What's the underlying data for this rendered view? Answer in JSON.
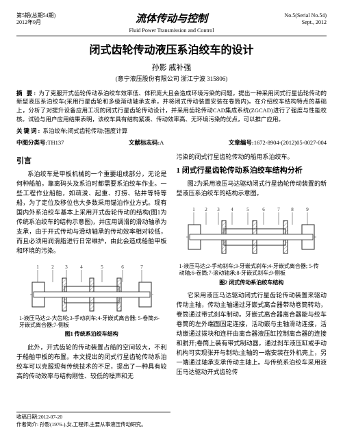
{
  "header": {
    "issue_cn": "第5期(总期54期)",
    "date_cn": "2012年9月",
    "journal_cn": "流体传动与控制",
    "journal_en": "Fluid Power Transmission and Control",
    "issue_en": "No.5(Serial No.54)",
    "date_en": "Sept., 2012"
  },
  "title": "闭式齿轮传动液压系泊绞车的设计",
  "authors": "孙影  戚补强",
  "affiliation": "(意宁液压股份有限公司  浙江宁波 315806)",
  "abstract_label": "摘  要:",
  "abstract": "为了克服开式齿轮传动系泊绞车效率低、体积庞大且会造成环境污染的问题，提出一种采用闭式行星齿轮传动的新型液压系泊绞车(采用行星齿轮和多级渐动轴承支承，并将闭式传动装置安装在卷筒内)。在介绍绞车结构特点的基础上，分析了对提升设备应用工况的闭式行星齿轮传动设计，并采用齿轮传动CAD集成系统(ZGCAD)进行了强度与性能校核。试验与用户应用结果表明，该绞车具有结构紧凑、传动效率高、无环境污染的优点，可以推广应用。",
  "keywords_label": "关键词:",
  "keywords": "系泊绞车;闭式齿轮传动;强度计算",
  "clc_label": "中图分类号:",
  "clc": "TH137",
  "docid_label": "文献标志码:",
  "docid": "A",
  "artno_label": "文章编号:",
  "artno": "1672-8904-(2012)05-0027-004",
  "left": {
    "h1": "引言",
    "p1": "系泊绞车是甲板机械的一个重要组成部分，无论是何种船舶，靠离码头及系泊时都需要系泊绞车作业。一些工程作业船舶，如疏浚、起重、打捞、钻井等特等船，为了定位及移位也大多数采用锚泊作业方式。现有国内外系泊绞车基本上采用开式齿轮传动的结构(图1为传统系泊绞车的结构示意图)，并应用调滑的滑动轴承为支承，由于开式传动与滑动轴承的传动效率相对较低，而且必须用润滑脂进行日常维护，由此会造成船舶甲板和环境的污染。",
    "fig1_sub": "1-液压马达;2-大齿轮;3-手动刹车;4-牙嵌式离合器; 5-卷筒;6-牙嵌式离合器;7-侧板",
    "fig1_cap": "图1 传统系泊绞车结构",
    "p2": "此外，开式齿轮的传动装置占船的空间较大，不利于船舶甲板的布置。本文提出的闭式行星齿轮传动系泊绞车可以克服现有传统技术的不足，提出了一种具有较高的传动效率与结构刚性、较低的噪声和无",
    "foot1": "收稿日期:2012-07-20",
    "foot2": "作者简介: 孙影(1976-),女,工程师,主要从事液压传动研究。"
  },
  "right": {
    "p0": "污染的闭式行星齿轮传动的船用系泊绞车。",
    "h1": "1  闭式行星齿轮传动系泊绞车结构分析",
    "p1": "图2为采用液压马达驱动闭式行星齿轮传动装置的新型液压系泊绞车的结构示意图。",
    "fig2_sub": "1-液压马达;2-手动刹车;3-牙嵌式刹车;4-牙嵌式离合器; 5-传动轴;6-卷筒;7-滚动轴承;8-牙嵌式刹车;9-侧板",
    "fig2_cap": "图2 闭式传动系泊绞车结构",
    "p2": "它采用液压马达驱动闭式行星齿轮传动装置来驱动传动主轴，传动主轴通过牙嵌式离合器带动卷筒转动，卷筒通过带式刹车制动。牙嵌式离合器离合器能与绞车卷筒的左外端面固定连接，活动嵌与主轴滑动连接，活动嵌通过拨块和连杆由离合器液压缸控制离合器的连接和脱开;卷筒上装有带式制动器，通过刹车液压缸或手动机构可实现张开与制动;主轴的一端安装在外机壳上，另一端通过轴承支承传动主轴上。与传统系泊绞车采用液压马达驱动开式齿轮传"
  },
  "colors": {
    "line": "#2a2a2a",
    "hatch": "#5a5a5a"
  }
}
